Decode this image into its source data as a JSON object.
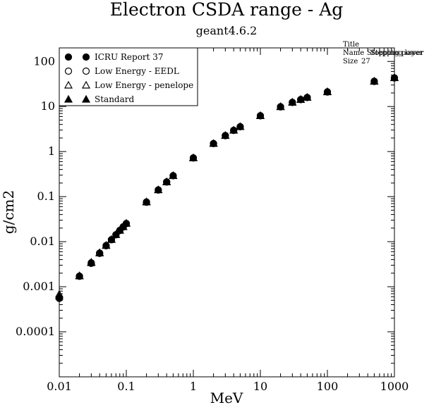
{
  "chart_data": {
    "type": "scatter",
    "title": "Electron CSDA range - Ag",
    "subtitle": "geant4.6.2",
    "xlabel": "MeV",
    "ylabel": "g/cm2",
    "xscale": "log",
    "yscale": "log",
    "xlim": [
      0.01,
      1000
    ],
    "ylim": [
      1e-05,
      200
    ],
    "x_ticks": [
      {
        "value": 0.01,
        "label": "0.01"
      },
      {
        "value": 0.1,
        "label": "0.1"
      },
      {
        "value": 1,
        "label": "1"
      },
      {
        "value": 10,
        "label": "10"
      },
      {
        "value": 100,
        "label": "100"
      },
      {
        "value": 1000,
        "label": "1000"
      }
    ],
    "y_ticks": [
      {
        "value": 0.0001,
        "label": "0.0001"
      },
      {
        "value": 0.001,
        "label": "0.001"
      },
      {
        "value": 0.01,
        "label": "0.01"
      },
      {
        "value": 0.1,
        "label": "0.1"
      },
      {
        "value": 1,
        "label": "1"
      },
      {
        "value": 10,
        "label": "10"
      },
      {
        "value": 100,
        "label": "100"
      }
    ],
    "grid": false,
    "legend_position": "top-left",
    "stats_box": {
      "title": "Title",
      "name_label": "Name",
      "name_value": "Stopping power",
      "name_overlap": "Stepping layer",
      "size_label": "Size",
      "size_value": "27"
    },
    "series": [
      {
        "name": "ICRU Report 37",
        "marker": "filled-circle",
        "color": "#000000",
        "x": [
          0.01,
          0.02,
          0.03,
          0.04,
          0.05,
          0.06,
          0.07,
          0.08,
          0.09,
          0.1,
          0.2,
          0.3,
          0.4,
          0.5,
          1,
          2,
          3,
          4,
          5,
          10,
          20,
          30,
          40,
          50,
          100,
          500,
          1000
        ],
        "y": [
          0.00055,
          0.0017,
          0.0033,
          0.0055,
          0.0081,
          0.011,
          0.0142,
          0.0177,
          0.0213,
          0.0252,
          0.075,
          0.14,
          0.21,
          0.29,
          0.72,
          1.5,
          2.25,
          2.95,
          3.55,
          6.2,
          9.8,
          12.3,
          14.2,
          15.8,
          21.0,
          36.0,
          43.0
        ]
      },
      {
        "name": "Low Energy - EEDL",
        "marker": "open-circle",
        "color": "#000000",
        "x": [
          0.01,
          0.02,
          0.03,
          0.04,
          0.05,
          0.06,
          0.07,
          0.08,
          0.09,
          0.1,
          0.2,
          0.3,
          0.4,
          0.5,
          1,
          2,
          3,
          4,
          5,
          10,
          20,
          30,
          40,
          50,
          100,
          500,
          1000
        ],
        "y": [
          0.00058,
          0.00172,
          0.0034,
          0.0056,
          0.0082,
          0.0111,
          0.0143,
          0.0178,
          0.0215,
          0.0254,
          0.076,
          0.141,
          0.212,
          0.292,
          0.725,
          1.51,
          2.27,
          2.97,
          3.57,
          6.25,
          9.9,
          12.4,
          14.3,
          15.9,
          21.2,
          36.3,
          43.4
        ]
      },
      {
        "name": "Low Energy - penelope",
        "marker": "open-triangle",
        "color": "#000000",
        "x": [
          0.01,
          0.02,
          0.03,
          0.04,
          0.05,
          0.06,
          0.07,
          0.08,
          0.09,
          0.1,
          0.2,
          0.3,
          0.4,
          0.5,
          1,
          2,
          3,
          4,
          5,
          10,
          20,
          30,
          40,
          50,
          100,
          500,
          1000
        ],
        "y": [
          0.00068,
          0.00175,
          0.0035,
          0.0057,
          0.0083,
          0.0112,
          0.0144,
          0.0179,
          0.0216,
          0.0256,
          0.077,
          0.142,
          0.214,
          0.294,
          0.73,
          1.52,
          2.28,
          2.99,
          3.6,
          6.3,
          10.0,
          12.5,
          14.4,
          16.0,
          21.4,
          36.6,
          43.8
        ]
      },
      {
        "name": "Standard",
        "marker": "filled-triangle",
        "color": "#000000",
        "x": [
          0.01,
          0.02,
          0.03,
          0.04,
          0.05,
          0.06,
          0.07,
          0.08,
          0.09,
          0.1,
          0.2,
          0.3,
          0.4,
          0.5,
          1,
          2,
          3,
          4,
          5,
          10,
          20,
          30,
          40,
          50,
          100,
          500,
          1000
        ],
        "y": [
          0.00062,
          0.00173,
          0.0034,
          0.0056,
          0.0082,
          0.0111,
          0.0143,
          0.0178,
          0.0214,
          0.0253,
          0.0755,
          0.1405,
          0.211,
          0.291,
          0.722,
          1.505,
          2.26,
          2.96,
          3.56,
          6.22,
          9.85,
          12.35,
          14.25,
          15.85,
          21.1,
          36.1,
          43.2
        ]
      }
    ]
  }
}
